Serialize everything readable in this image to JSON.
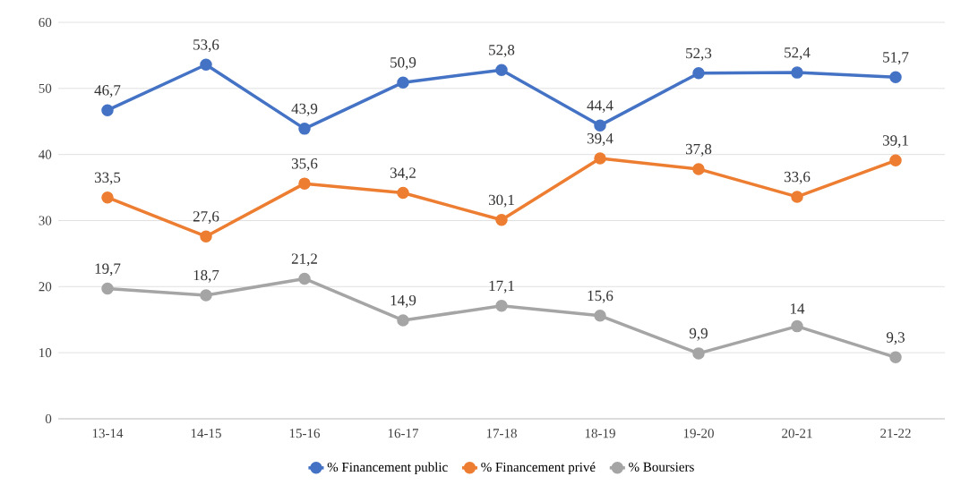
{
  "chart_data": {
    "type": "line",
    "categories": [
      "13-14",
      "14-15",
      "15-16",
      "16-17",
      "17-18",
      "18-19",
      "19-20",
      "20-21",
      "21-22"
    ],
    "series": [
      {
        "name": "% Financement public",
        "color": "#4472c4",
        "values": [
          46.7,
          53.6,
          43.9,
          50.9,
          52.8,
          44.4,
          52.3,
          52.4,
          51.7
        ],
        "value_labels": [
          "46,7",
          "53,6",
          "43,9",
          "50,9",
          "52,8",
          "44,4",
          "52,3",
          "52,4",
          "51,7"
        ]
      },
      {
        "name": "% Financement privé",
        "color": "#ed7d31",
        "values": [
          33.5,
          27.6,
          35.6,
          34.2,
          30.1,
          39.4,
          37.8,
          33.6,
          39.1
        ],
        "value_labels": [
          "33,5",
          "27,6",
          "35,6",
          "34,2",
          "30,1",
          "39,4",
          "37,8",
          "33,6",
          "39,1"
        ]
      },
      {
        "name": "% Boursiers",
        "color": "#a5a5a5",
        "values": [
          19.7,
          18.7,
          21.2,
          14.9,
          17.1,
          15.6,
          9.9,
          14,
          9.3
        ],
        "value_labels": [
          "19,7",
          "18,7",
          "21,2",
          "14,9",
          "17,1",
          "15,6",
          "9,9",
          "14",
          "9,3"
        ]
      }
    ],
    "ylim": [
      0,
      60
    ],
    "yticks": [
      0,
      10,
      20,
      30,
      40,
      50,
      60
    ],
    "grid": "y",
    "legend": "bottom",
    "marker": "circle",
    "line_style": "solid"
  }
}
